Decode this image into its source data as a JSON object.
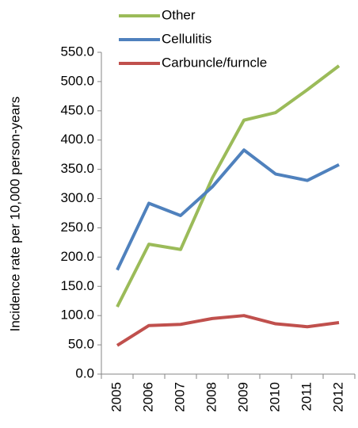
{
  "chart_data": {
    "type": "line",
    "y_label": "Incidence rate per 10,000 person-years",
    "categories": [
      "2005",
      "2006",
      "2007",
      "2008",
      "2009",
      "2010",
      "2011",
      "2012"
    ],
    "series": [
      {
        "name": "Other",
        "color": "#9bbb59",
        "values": [
          115,
          222,
          213,
          335,
          434,
          447,
          486,
          527
        ]
      },
      {
        "name": "Cellulitis",
        "color": "#4f81bd",
        "values": [
          178,
          292,
          271,
          320,
          383,
          342,
          331,
          358
        ]
      },
      {
        "name": "Carbuncle/furncle",
        "color": "#c0504d",
        "values": [
          49,
          83,
          85,
          95,
          100,
          86,
          81,
          88
        ]
      }
    ],
    "ylim": [
      0,
      550
    ],
    "yticks": [
      {
        "value": 0,
        "label": "0.0"
      },
      {
        "value": 50,
        "label": "50.0"
      },
      {
        "value": 100,
        "label": "100.0"
      },
      {
        "value": 150,
        "label": "150.0"
      },
      {
        "value": 200,
        "label": "200.0"
      },
      {
        "value": 250,
        "label": "250.0"
      },
      {
        "value": 300,
        "label": "300.0"
      },
      {
        "value": 350,
        "label": "350.0"
      },
      {
        "value": 400,
        "label": "400.0"
      },
      {
        "value": 450,
        "label": "450.0"
      },
      {
        "value": 500,
        "label": "500.0"
      },
      {
        "value": 550,
        "label": "550.0"
      }
    ],
    "grid": false,
    "legend": "top"
  }
}
